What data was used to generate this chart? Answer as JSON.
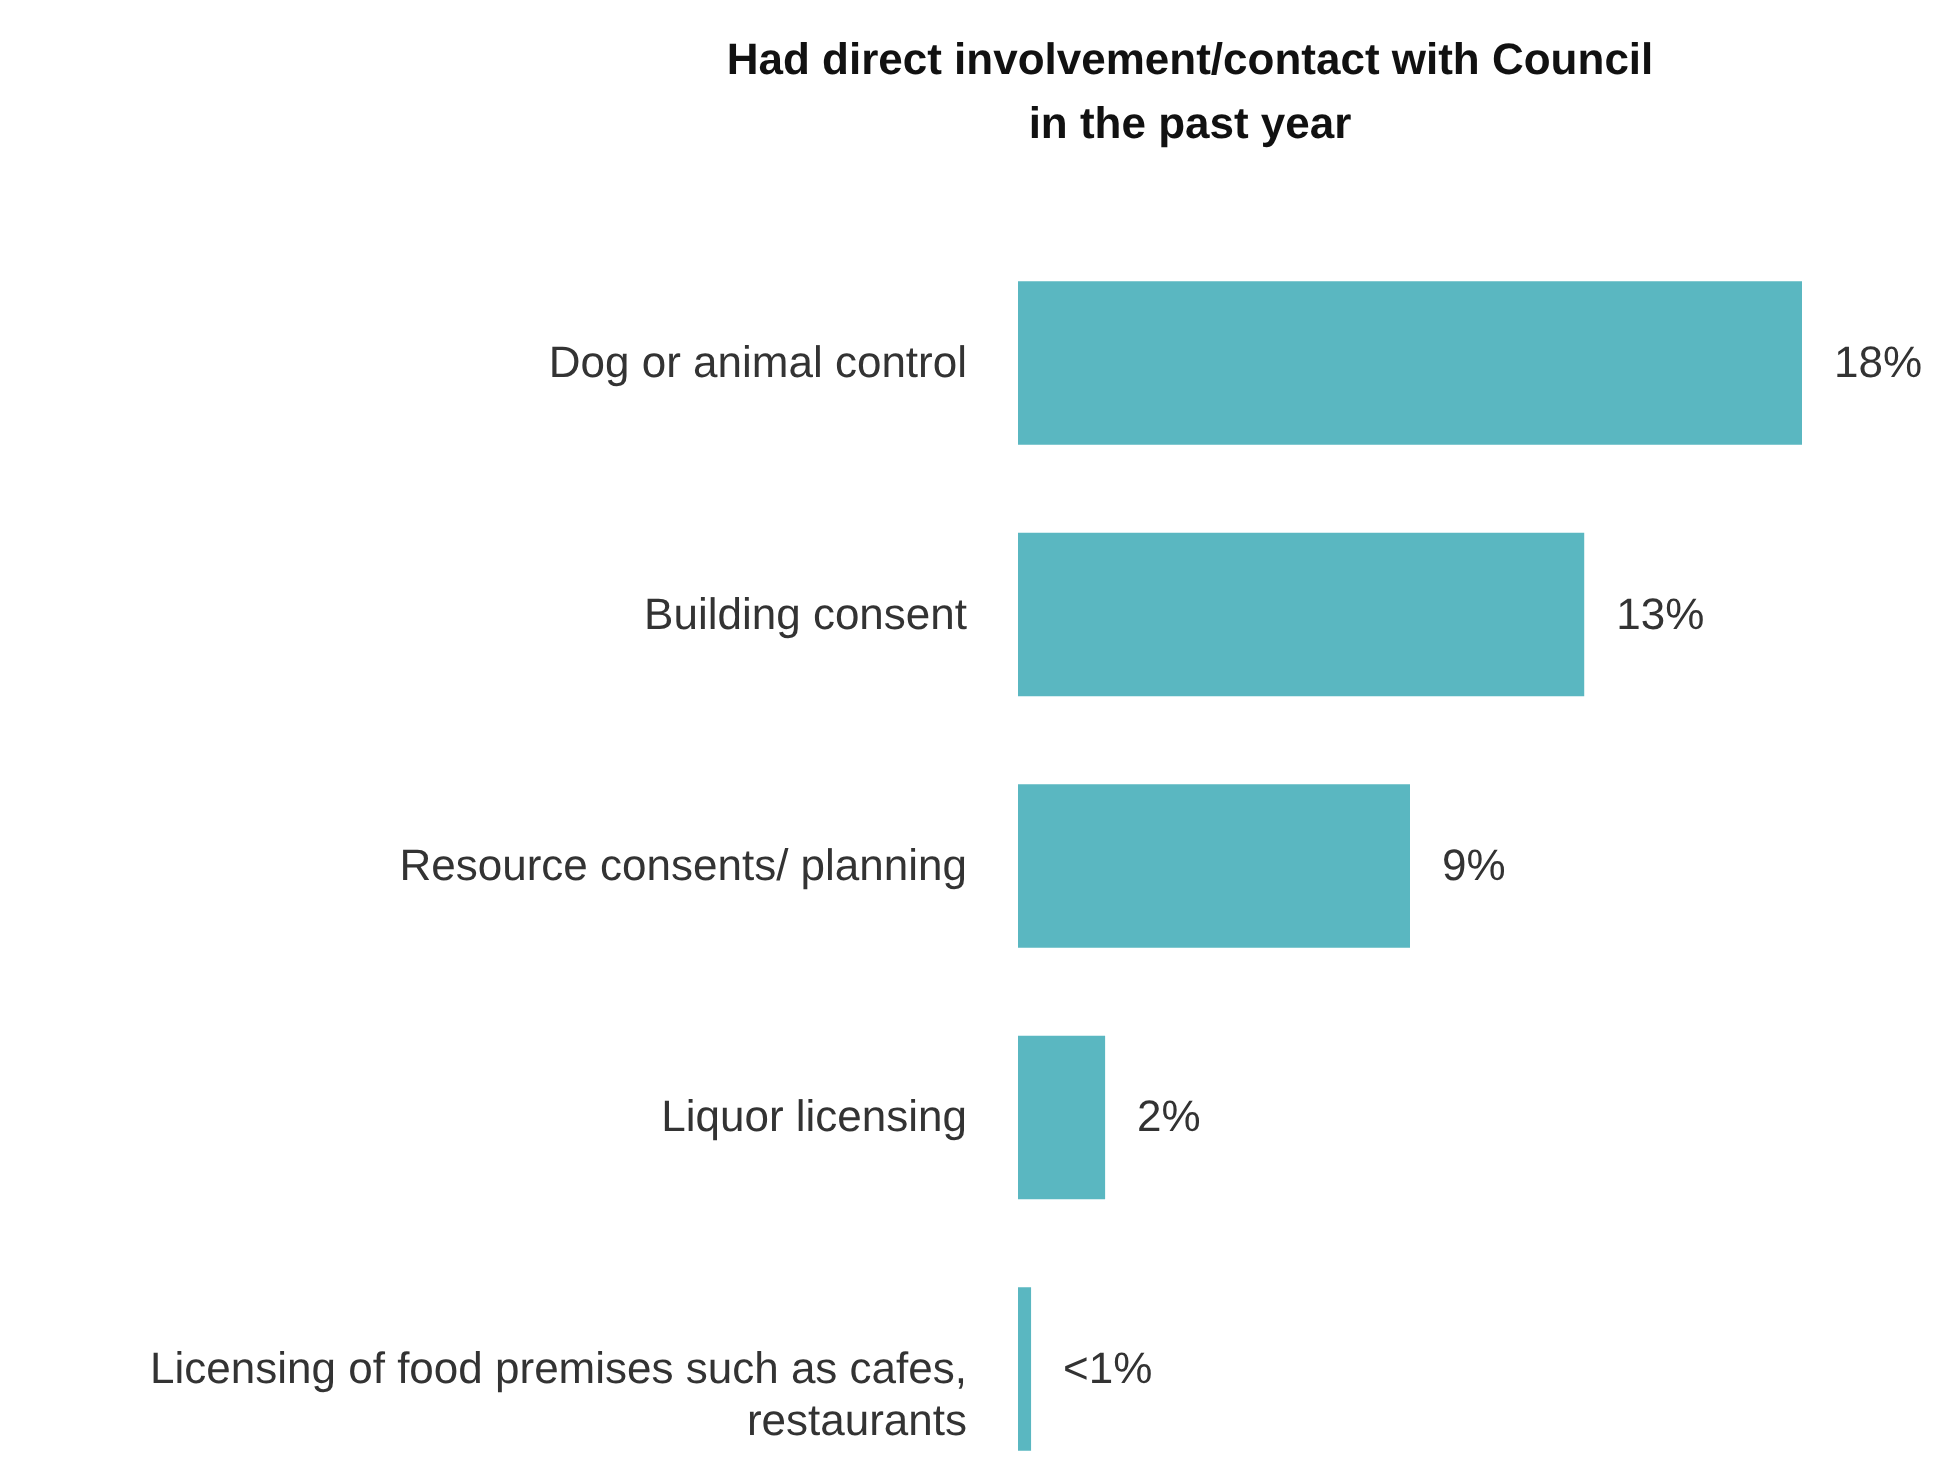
{
  "chart_data": {
    "type": "bar",
    "orientation": "horizontal",
    "title": "Had direct involvement/contact with Council in the past year",
    "categories": [
      "Dog or animal control",
      "Building consent",
      "Resource consents/ planning",
      "Liquor licensing",
      "Licensing of food premises such as cafes, restaurants"
    ],
    "values": [
      18,
      13,
      9,
      2,
      0.3
    ],
    "value_labels": [
      "18%",
      "13%",
      "9%",
      "2%",
      "<1%"
    ],
    "color": "#5ab7c1"
  }
}
